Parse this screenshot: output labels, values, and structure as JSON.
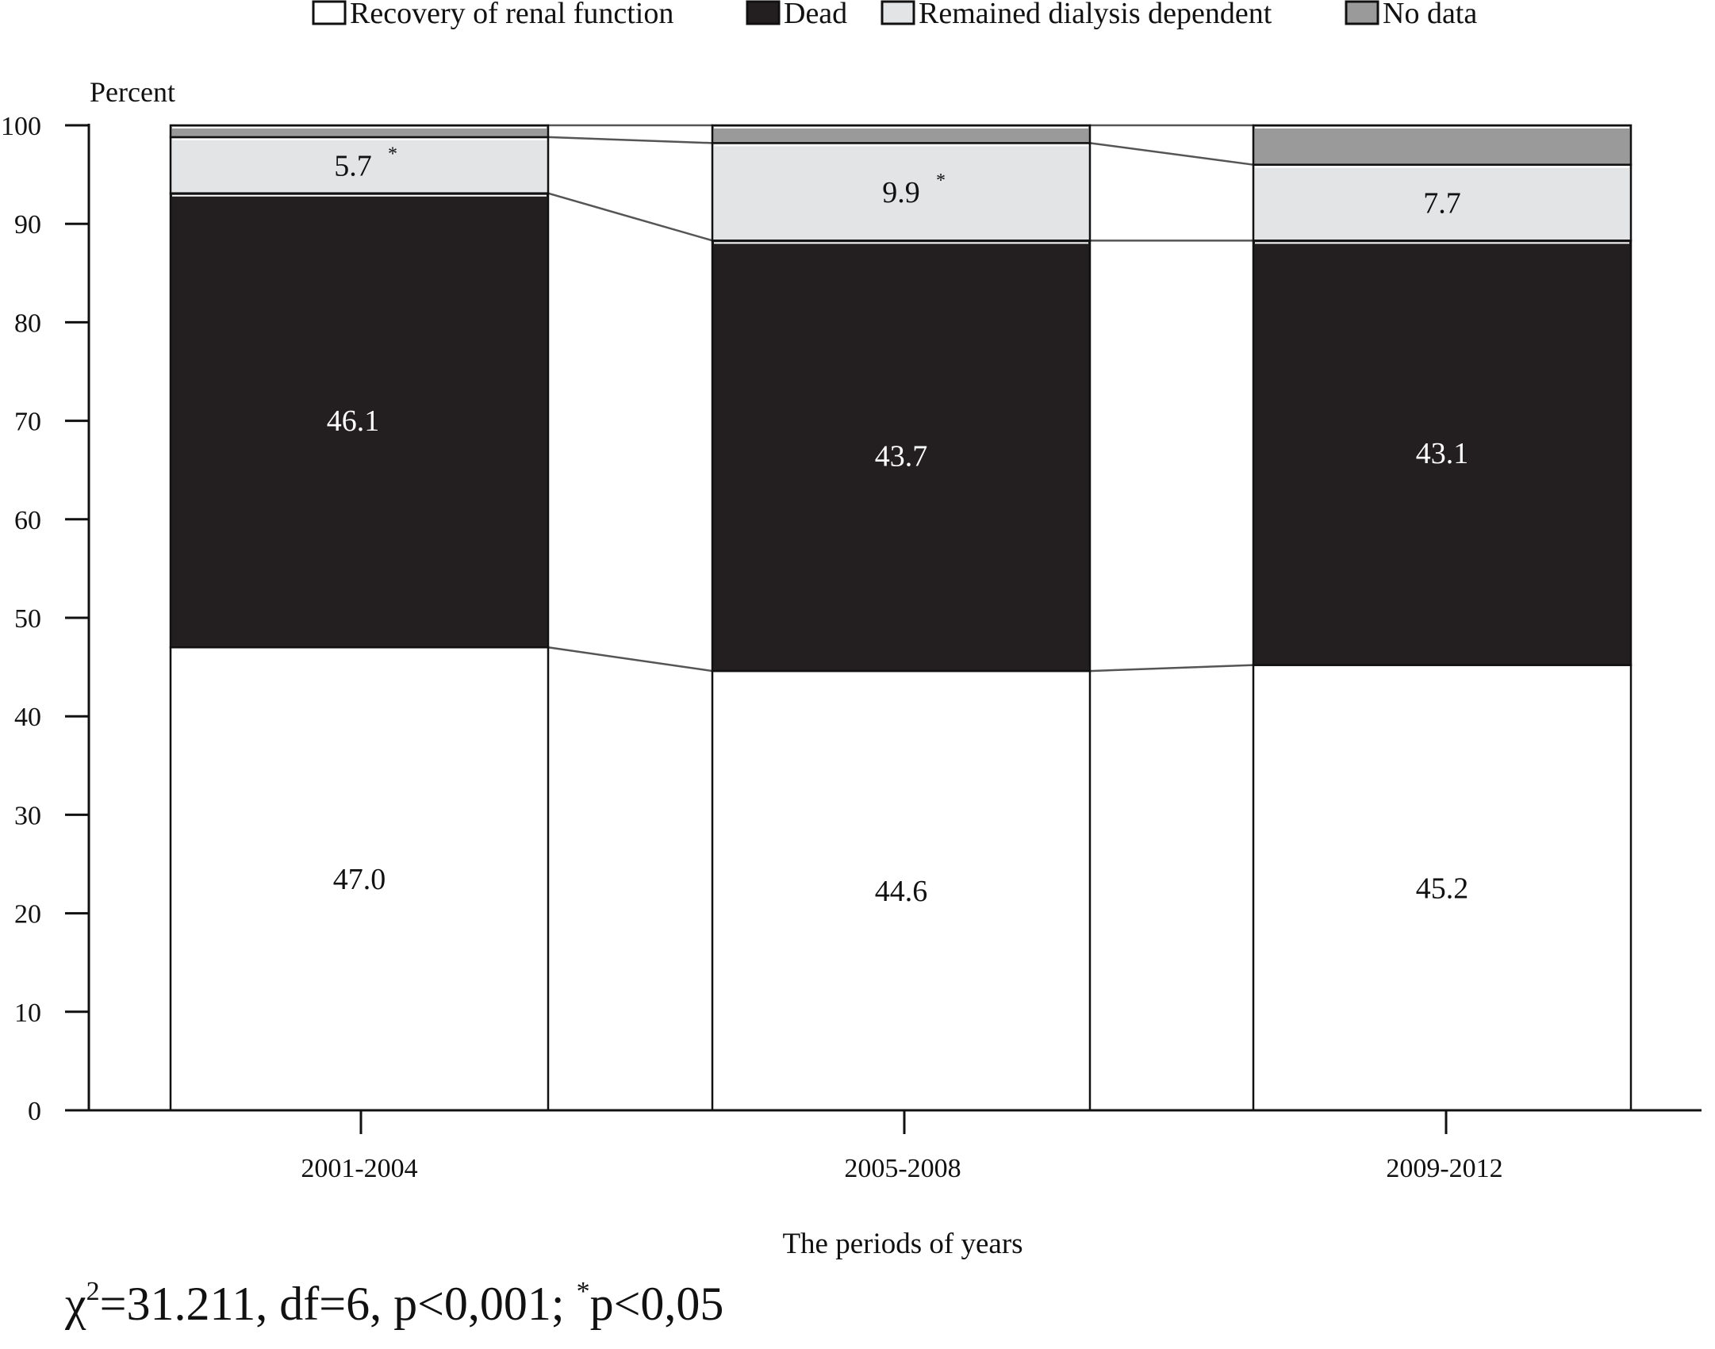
{
  "chart_data": {
    "type": "bar",
    "stacked": true,
    "ylabel": "Percent",
    "xlabel": "The periods of years",
    "ylim": [
      0,
      100
    ],
    "yticks": [
      0,
      10,
      20,
      30,
      40,
      50,
      60,
      70,
      80,
      90,
      100
    ],
    "categories": [
      "2001-2004",
      "2005-2008",
      "2009-2012"
    ],
    "legend_position": "top",
    "series": [
      {
        "name": "Recovery of renal function",
        "color": "#ffffff",
        "label_color": "#111111",
        "values": [
          47.0,
          44.6,
          45.2
        ],
        "labels": [
          "47.0",
          "44.6",
          "45.2"
        ],
        "stars": [
          "",
          "",
          ""
        ]
      },
      {
        "name": "Dead",
        "color": "#231f20",
        "label_color": "#ffffff",
        "values": [
          46.1,
          43.7,
          43.1
        ],
        "labels": [
          "46.1",
          "43.7",
          "43.1"
        ],
        "stars": [
          "",
          "",
          ""
        ]
      },
      {
        "name": "Remained dialysis dependent",
        "color": "#e3e4e5",
        "label_color": "#111111",
        "values": [
          5.7,
          9.9,
          7.7
        ],
        "labels": [
          "5.7",
          "9.9",
          "7.7"
        ],
        "stars": [
          "*",
          "*",
          ""
        ]
      },
      {
        "name": "No data",
        "color": "#9a9a9a",
        "label_color": "#111111",
        "values": [
          1.2,
          1.8,
          4.0
        ],
        "labels": [
          "",
          "",
          ""
        ],
        "stars": [
          "",
          "",
          ""
        ]
      }
    ]
  },
  "statistic": {
    "chi": "χ",
    "chi_sup": "2",
    "main": "=31.211, df=6, p<0,001; ",
    "star": "*",
    "tail": "p<0,05"
  }
}
